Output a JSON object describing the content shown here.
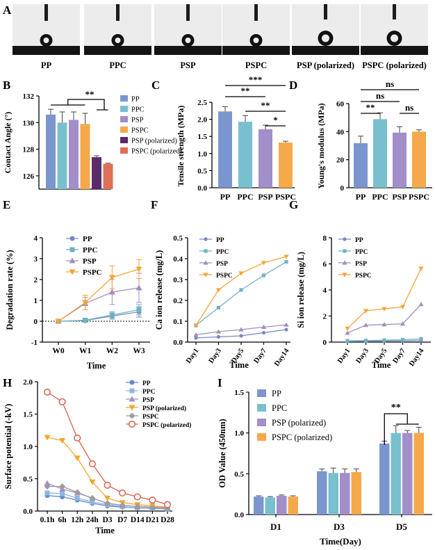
{
  "panel_letters": {
    "A": "A",
    "B": "B",
    "C": "C",
    "D": "D",
    "E": "E",
    "F": "F",
    "G": "G",
    "H": "H",
    "I": "I"
  },
  "colors": {
    "PP": "#7b96cf",
    "PPC": "#79c0cf",
    "PSP": "#a28ec8",
    "PSPC": "#f5a94a",
    "PSP_pol": "#5b2a6b",
    "PSPC_pol": "#e07055",
    "line_pp": "#7a89c5",
    "line_ppc": "#6fb3c0",
    "line_psp": "#a08fbe",
    "line_pspc": "#f5a43a",
    "h_pp": "#5f8bd0",
    "h_ppc": "#8fb6e0",
    "h_psp": "#a48fc6",
    "h_psp_pol": "#f0a830",
    "h_pspc": "#9c9c9c",
    "h_pspc_pol": "#d9604e"
  },
  "panelA": {
    "images": [
      {
        "label": "PP"
      },
      {
        "label": "PPC"
      },
      {
        "label": "PSP"
      },
      {
        "label": "PSPC"
      },
      {
        "label": "PSP (polarized)"
      },
      {
        "label": "PSPC (polarized)"
      }
    ]
  },
  "chart_data": [
    {
      "id": "B",
      "type": "bar",
      "ylabel": "Contact Angle (°)",
      "ylim": [
        125,
        132
      ],
      "yticks": [
        126,
        128,
        130,
        132
      ],
      "categories": [
        "PP",
        "PPC",
        "PSP",
        "PSPC",
        "PSP (polarized)",
        "PSPC (polarized)"
      ],
      "values": [
        130.6,
        130.0,
        130.2,
        129.9,
        127.4,
        126.9
      ],
      "errors": [
        0.4,
        0.8,
        0.6,
        0.8,
        0.1,
        0.05
      ],
      "significance": [
        {
          "label": "**"
        }
      ],
      "legend": [
        "PP",
        "PPC",
        "PSP",
        "PSPC",
        "PSP (polarized)",
        "PSPC (polarized)"
      ]
    },
    {
      "id": "C",
      "type": "bar",
      "ylabel": "Tensile strength (MPa)",
      "ylim": [
        0,
        2.5
      ],
      "yticks": [
        "0.0",
        "0.5",
        "1.0",
        "1.5",
        "2.0",
        "2.5"
      ],
      "categories": [
        "PP",
        "PPC",
        "PSP",
        "PSPC"
      ],
      "values": [
        2.23,
        1.93,
        1.71,
        1.32
      ],
      "errors": [
        0.14,
        0.18,
        0.12,
        0.04
      ],
      "significance": [
        {
          "label": "***"
        },
        {
          "label": "**"
        },
        {
          "label": "**"
        },
        {
          "label": "*"
        }
      ]
    },
    {
      "id": "D",
      "type": "bar",
      "ylabel": "Young's modulus (MPa)",
      "ylim": [
        0,
        60
      ],
      "yticks": [
        "0",
        "20",
        "40",
        "60"
      ],
      "categories": [
        "PP",
        "PPC",
        "PSP",
        "PSPC"
      ],
      "values": [
        31.8,
        48.9,
        39.3,
        40.0
      ],
      "errors": [
        5.0,
        4.5,
        4.2,
        1.3
      ],
      "significance": [
        {
          "label": "ns"
        },
        {
          "label": "ns"
        },
        {
          "label": "**"
        },
        {
          "label": "ns"
        }
      ]
    },
    {
      "id": "E",
      "type": "line",
      "ylabel": "Degradation rate (%)",
      "xlabel": "Time",
      "ylim": [
        -1,
        4
      ],
      "yticks": [
        "-1",
        "0",
        "1",
        "2",
        "3",
        "4"
      ],
      "categories": [
        "W0",
        "W1",
        "W2",
        "W3"
      ],
      "series": [
        {
          "name": "PP",
          "values": [
            0,
            0.03,
            0.25,
            0.45
          ],
          "errors": [
            0.05,
            0.08,
            0.15,
            0.25
          ]
        },
        {
          "name": "PPC",
          "values": [
            0,
            0.05,
            0.3,
            0.55
          ],
          "errors": [
            0.05,
            0.08,
            0.15,
            0.25
          ]
        },
        {
          "name": "PSP",
          "values": [
            0,
            0.85,
            1.4,
            1.6
          ],
          "errors": [
            0.05,
            0.3,
            0.6,
            0.7
          ]
        },
        {
          "name": "PSPC",
          "values": [
            0,
            0.9,
            2.1,
            2.5
          ],
          "errors": [
            0.05,
            0.35,
            0.55,
            0.45
          ]
        }
      ]
    },
    {
      "id": "F",
      "type": "line",
      "ylabel": "Ca ion release (mg/L)",
      "xlabel": "Time",
      "ylim": [
        0,
        0.5
      ],
      "yticks": [
        "0.0",
        "0.1",
        "0.2",
        "0.3",
        "0.4",
        "0.5"
      ],
      "categories": [
        "Day1",
        "Day3",
        "Day5",
        "Day7",
        "Day14"
      ],
      "series": [
        {
          "name": "PP",
          "values": [
            0.02,
            0.025,
            0.03,
            0.045,
            0.06
          ]
        },
        {
          "name": "PPC",
          "values": [
            0.08,
            0.165,
            0.25,
            0.32,
            0.385
          ]
        },
        {
          "name": "PSP",
          "values": [
            0.035,
            0.05,
            0.06,
            0.072,
            0.083
          ]
        },
        {
          "name": "PSPC",
          "values": [
            0.08,
            0.25,
            0.33,
            0.38,
            0.41
          ]
        }
      ]
    },
    {
      "id": "G",
      "type": "line",
      "ylabel": "Si ion release (mg/L)",
      "xlabel": "Time",
      "ylim": [
        0,
        8
      ],
      "yticks": [
        "0",
        "2",
        "4",
        "6",
        "8"
      ],
      "categories": [
        "Day1",
        "Day3",
        "Day5",
        "Day7",
        "Day14"
      ],
      "series": [
        {
          "name": "PP",
          "values": [
            0.05,
            0.06,
            0.08,
            0.1,
            0.12
          ]
        },
        {
          "name": "PPC",
          "values": [
            0.1,
            0.12,
            0.15,
            0.18,
            0.25
          ]
        },
        {
          "name": "PSP",
          "values": [
            0.7,
            1.3,
            1.35,
            1.4,
            2.9
          ]
        },
        {
          "name": "PSPC",
          "values": [
            1.05,
            2.4,
            2.55,
            2.7,
            5.65
          ]
        }
      ]
    },
    {
      "id": "H",
      "type": "line",
      "ylabel": "Surface potential (-kV)",
      "xlabel": "Time",
      "ylim": [
        0,
        2.0
      ],
      "yticks": [
        "0.0",
        "0.5",
        "1.0",
        "1.5",
        "2.0"
      ],
      "categories": [
        "0.1h",
        "6h",
        "12h",
        "24h",
        "D3",
        "D7",
        "D14",
        "D21",
        "D28"
      ],
      "series": [
        {
          "name": "PP",
          "values": [
            0.24,
            0.22,
            0.17,
            0.12,
            0.08,
            0.06,
            0.05,
            0.04,
            0.03
          ]
        },
        {
          "name": "PPC",
          "values": [
            0.28,
            0.27,
            0.2,
            0.14,
            0.1,
            0.07,
            0.05,
            0.04,
            0.03
          ]
        },
        {
          "name": "PSP",
          "values": [
            0.43,
            0.34,
            0.28,
            0.2,
            0.12,
            0.09,
            0.07,
            0.06,
            0.05
          ]
        },
        {
          "name": "PSP (polarized)",
          "values": [
            1.14,
            1.09,
            0.82,
            0.45,
            0.2,
            0.13,
            0.1,
            0.08,
            0.06
          ]
        },
        {
          "name": "PSPC",
          "values": [
            0.38,
            0.38,
            0.29,
            0.2,
            0.12,
            0.09,
            0.07,
            0.05,
            0.04
          ]
        },
        {
          "name": "PSPC (polarized)",
          "values": [
            1.84,
            1.69,
            1.13,
            0.73,
            0.4,
            0.28,
            0.22,
            0.17,
            0.1
          ]
        }
      ]
    },
    {
      "id": "I",
      "type": "bar",
      "ylabel": "OD Value (450nm)",
      "xlabel": "Time(Day)",
      "ylim": [
        0,
        1.5
      ],
      "yticks": [
        "0.0",
        "0.5",
        "1.0",
        "1.5"
      ],
      "categories": [
        "D1",
        "D3",
        "D5"
      ],
      "series": [
        {
          "name": "PP",
          "values": [
            0.22,
            0.53,
            0.87
          ],
          "errors": [
            0.01,
            0.03,
            0.03
          ]
        },
        {
          "name": "PPC",
          "values": [
            0.21,
            0.51,
            1.0
          ],
          "errors": [
            0.01,
            0.06,
            0.09
          ]
        },
        {
          "name": "PSP (polarized)",
          "values": [
            0.23,
            0.51,
            1.0
          ],
          "errors": [
            0.01,
            0.05,
            0.03
          ]
        },
        {
          "name": "PSPC (polarized)",
          "values": [
            0.22,
            0.52,
            1.0
          ],
          "errors": [
            0.01,
            0.04,
            0.07
          ]
        }
      ],
      "significance": [
        {
          "label": "**"
        }
      ]
    }
  ]
}
